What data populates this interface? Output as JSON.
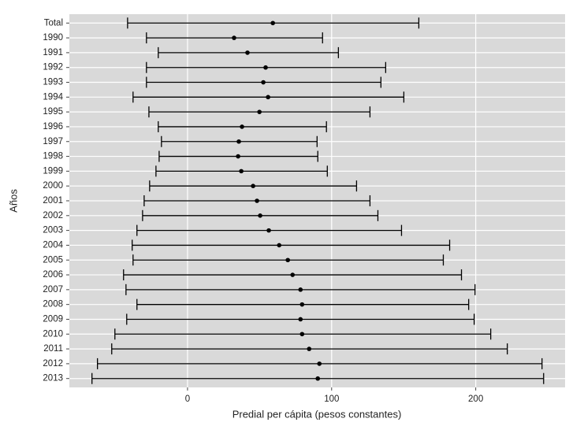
{
  "chart_data": {
    "type": "errorbar",
    "categories": [
      "Total",
      "1990",
      "1991",
      "1992",
      "1993",
      "1994",
      "1995",
      "1996",
      "1997",
      "1998",
      "1999",
      "2000",
      "2001",
      "2002",
      "2003",
      "2004",
      "2005",
      "2006",
      "2007",
      "2008",
      "2009",
      "2010",
      "2011",
      "2012",
      "2013"
    ],
    "values": [
      59.2,
      32.3,
      41.6,
      54.2,
      52.6,
      55.9,
      49.9,
      37.8,
      35.6,
      35.1,
      37.3,
      45.5,
      48.2,
      50.4,
      56.4,
      63.6,
      69.6,
      72.9,
      78.4,
      79.5,
      78.4,
      79.5,
      84.4,
      91.5,
      90.4
    ],
    "low": [
      -41.6,
      -28.5,
      -20.3,
      -28.5,
      -28.5,
      -37.8,
      -26.8,
      -20.3,
      -18.1,
      -19.7,
      -21.9,
      -26.3,
      -30.1,
      -31.2,
      -35.1,
      -38.4,
      -37.8,
      -44.4,
      -42.7,
      -35.1,
      -42.2,
      -50.4,
      -52.6,
      -62.5,
      -66.3
    ],
    "high": [
      160.5,
      93.7,
      104.7,
      137.5,
      134.2,
      150.1,
      126.6,
      96.4,
      89.9,
      90.4,
      97.0,
      117.3,
      126.6,
      132.1,
      148.5,
      181.9,
      177.5,
      190.1,
      199.5,
      195.1,
      198.9,
      210.4,
      221.9,
      246.0,
      247.1
    ],
    "xlim": [
      -82,
      262
    ],
    "xticks": [
      0,
      100,
      200
    ],
    "xlabel": "Predial per cápita (pesos constantes)",
    "ylabel": "Años",
    "grid": true,
    "color": "#000000",
    "panel_color": "#d9d9d9"
  }
}
